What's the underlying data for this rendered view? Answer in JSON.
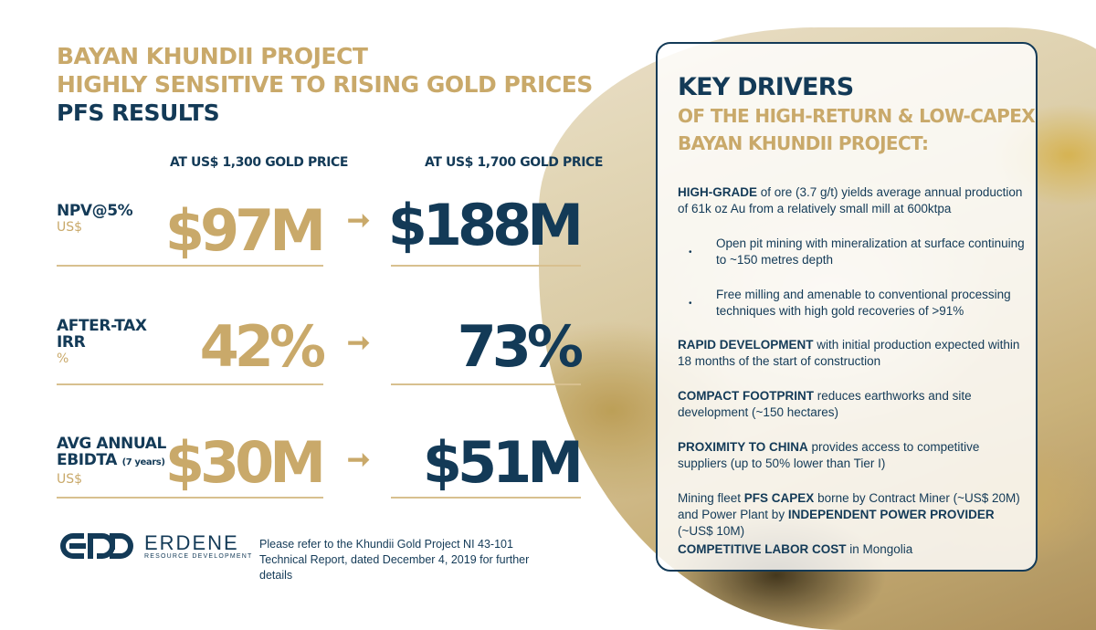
{
  "title": {
    "line1": "BAYAN KHUNDII PROJECT",
    "line2": "HIGHLY SENSITIVE TO RISING GOLD PRICES",
    "line3": "PFS RESULTS"
  },
  "columns": {
    "before": "AT US$ 1,300 GOLD PRICE",
    "after": "AT US$ 1,700 GOLD PRICE"
  },
  "arrow_glyph": "➞",
  "rows": [
    {
      "label1": "NPV@5%",
      "label2": "",
      "unit": "US$",
      "before": "$97M",
      "after": "$188M"
    },
    {
      "label1": "AFTER-TAX",
      "label2": "IRR",
      "unit": "%",
      "before": "42%",
      "after": "73%"
    },
    {
      "label1": "AVG ANNUAL",
      "label2": "EBIDTA",
      "label2_small": "(7 years)",
      "unit": "US$",
      "before": "$30M",
      "after": "$51M"
    }
  ],
  "logo": {
    "name": "ERDENE",
    "sub": "RESOURCE DEVELOPMENT"
  },
  "footnote": "Please refer to the Khundii Gold Project NI 43-101 Technical Report, dated December 4, 2019 for further details",
  "panel": {
    "title": "KEY DRIVERS",
    "subtitle1": "OF THE HIGH-RETURN & LOW-CAPEX",
    "subtitle2": "BAYAN KHUNDII PROJECT:",
    "p1_bold": "HIGH-GRADE",
    "p1_text": " of ore (3.7 g/t) yields average annual production of 61k oz Au from a relatively small mill at 600ktpa",
    "bullet1": "Open pit mining with mineralization at surface continuing to ~150 metres depth",
    "bullet2": "Free milling and amenable to conventional processing techniques with high gold recoveries of >91%",
    "bullet_glyph": "•",
    "p2_bold": "RAPID DEVELOPMENT",
    "p2_text": " with initial production expected within 18 months of the start of construction",
    "p3_bold": "COMPACT FOOTPRINT",
    "p3_text": " reduces earthworks and site development (~150 hectares)",
    "p4_bold": "PROXIMITY TO CHINA",
    "p4_text": " provides access to competitive suppliers (up to 50% lower than Tier I)",
    "p5_a": "Mining fleet ",
    "p5_bold1": "PFS CAPEX",
    "p5_b": " borne by Contract Miner (~US$ 20M) and Power Plant by ",
    "p5_bold2": "INDEPENDENT POWER PROVIDER",
    "p5_c": " (~US$ 10M)",
    "p6_bold": "COMPETITIVE LABOR COST",
    "p6_text": " in Mongolia"
  },
  "colors": {
    "gold": "#c9a96a",
    "navy": "#133a57",
    "rule": "#d8c08f"
  }
}
